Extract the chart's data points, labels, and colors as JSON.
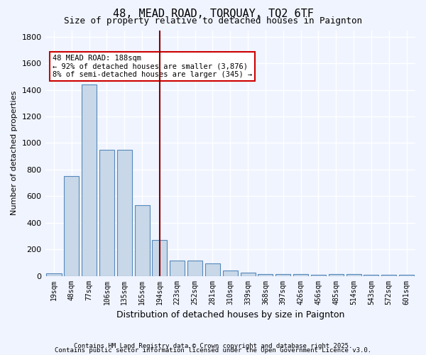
{
  "title1": "48, MEAD ROAD, TORQUAY, TQ2 6TF",
  "title2": "Size of property relative to detached houses in Paignton",
  "xlabel": "Distribution of detached houses by size in Paignton",
  "ylabel": "Number of detached properties",
  "categories": [
    "19sqm",
    "48sqm",
    "77sqm",
    "106sqm",
    "135sqm",
    "165sqm",
    "194sqm",
    "223sqm",
    "252sqm",
    "281sqm",
    "310sqm",
    "339sqm",
    "368sqm",
    "397sqm",
    "426sqm",
    "456sqm",
    "485sqm",
    "514sqm",
    "543sqm",
    "572sqm",
    "601sqm"
  ],
  "values": [
    20,
    750,
    1440,
    950,
    950,
    530,
    270,
    115,
    115,
    95,
    40,
    25,
    15,
    15,
    15,
    10,
    15,
    15,
    10,
    10,
    10
  ],
  "bar_color": "#c8d8e8",
  "bar_edge_color": "#5588bb",
  "background_color": "#f0f4ff",
  "grid_color": "#ffffff",
  "vline_x_index": 6,
  "vline_color": "#8b0000",
  "annotation_text": "48 MEAD ROAD: 188sqm\n← 92% of detached houses are smaller (3,876)\n8% of semi-detached houses are larger (345) →",
  "annotation_box_color": "#ffffff",
  "annotation_box_edge": "#cc0000",
  "ylim": [
    0,
    1850
  ],
  "yticks": [
    0,
    200,
    400,
    600,
    800,
    1000,
    1200,
    1400,
    1600,
    1800
  ],
  "footer1": "Contains HM Land Registry data © Crown copyright and database right 2025.",
  "footer2": "Contains public sector information licensed under the Open Government Licence v3.0."
}
